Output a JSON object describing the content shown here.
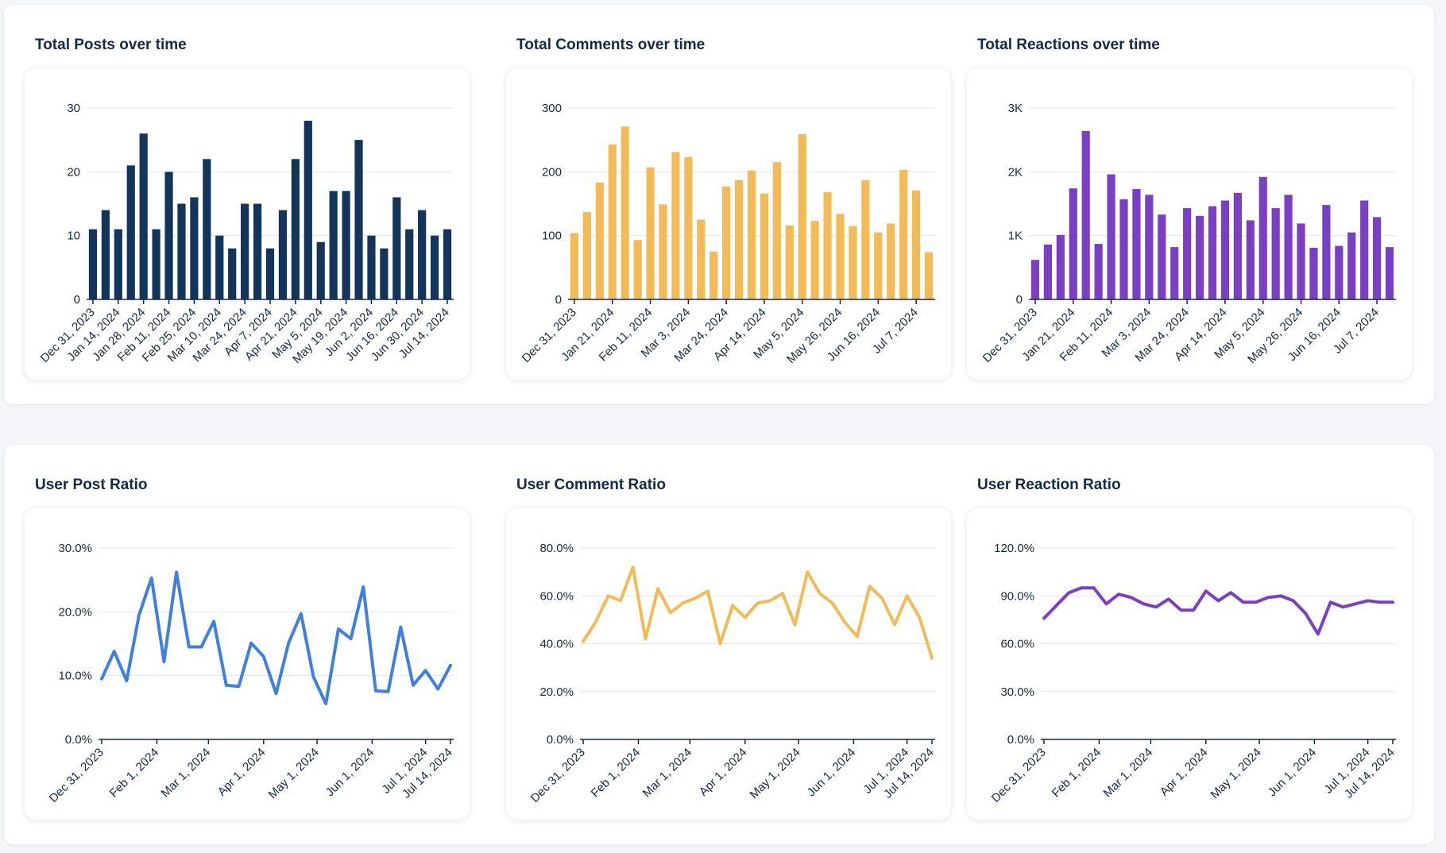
{
  "sections": [
    {
      "charts": [
        {
          "title": "Total Posts over time",
          "chart_data": {
            "type": "bar",
            "color": "#13345b",
            "ylim": [
              0,
              30
            ],
            "yticks": [
              "0",
              "10",
              "20",
              "30"
            ],
            "ytick_values": [
              0,
              10,
              20,
              30
            ],
            "values": [
              11,
              14,
              11,
              21,
              26,
              11,
              20,
              15,
              16,
              22,
              10,
              8,
              15,
              15,
              8,
              14,
              22,
              28,
              9,
              17,
              17,
              25,
              10,
              8,
              16,
              11,
              14,
              10,
              11
            ],
            "xtick_labels": [
              {
                "index": 0,
                "label": "Dec 31, 2023"
              },
              {
                "index": 2,
                "label": "Jan 14, 2024"
              },
              {
                "index": 4,
                "label": "Jan 28, 2024"
              },
              {
                "index": 6,
                "label": "Feb 11, 2024"
              },
              {
                "index": 8,
                "label": "Feb 25, 2024"
              },
              {
                "index": 10,
                "label": "Mar 10, 2024"
              },
              {
                "index": 12,
                "label": "Mar 24, 2024"
              },
              {
                "index": 14,
                "label": "Apr 7, 2024"
              },
              {
                "index": 16,
                "label": "Apr 21, 2024"
              },
              {
                "index": 18,
                "label": "May 5, 2024"
              },
              {
                "index": 20,
                "label": "May 19, 2024"
              },
              {
                "index": 22,
                "label": "Jun 2, 2024"
              },
              {
                "index": 24,
                "label": "Jun 16, 2024"
              },
              {
                "index": 26,
                "label": "Jun 30, 2024"
              },
              {
                "index": 28,
                "label": "Jul 14, 2024"
              }
            ]
          }
        },
        {
          "title": "Total Comments over time",
          "chart_data": {
            "type": "bar",
            "color": "#f2bb57",
            "ylim": [
              0,
              300
            ],
            "yticks": [
              "0",
              "100",
              "200",
              "300"
            ],
            "ytick_values": [
              0,
              100,
              200,
              300
            ],
            "values": [
              104,
              137,
              183,
              243,
              271,
              93,
              207,
              149,
              231,
              223,
              125,
              75,
              177,
              187,
              202,
              166,
              215,
              116,
              259,
              123,
              168,
              134,
              115,
              187,
              105,
              119,
              203,
              171,
              74
            ],
            "xtick_labels": [
              {
                "index": 0,
                "label": "Dec 31, 2023"
              },
              {
                "index": 3,
                "label": "Jan 21, 2024"
              },
              {
                "index": 6,
                "label": "Feb 11, 2024"
              },
              {
                "index": 9,
                "label": "Mar 3, 2024"
              },
              {
                "index": 12,
                "label": "Mar 24, 2024"
              },
              {
                "index": 15,
                "label": "Apr 14, 2024"
              },
              {
                "index": 18,
                "label": "May 5, 2024"
              },
              {
                "index": 21,
                "label": "May 26, 2024"
              },
              {
                "index": 24,
                "label": "Jun 16, 2024"
              },
              {
                "index": 27,
                "label": "Jul 7, 2024"
              }
            ]
          }
        },
        {
          "title": "Total Reactions over time",
          "chart_data": {
            "type": "bar",
            "color": "#7a3fc2",
            "ylim": [
              0,
              3000
            ],
            "yticks": [
              "0",
              "1K",
              "2K",
              "3K"
            ],
            "ytick_values": [
              0,
              1000,
              2000,
              3000
            ],
            "values": [
              620,
              860,
              1010,
              1740,
              2640,
              870,
              1960,
              1570,
              1730,
              1640,
              1330,
              820,
              1430,
              1310,
              1460,
              1550,
              1670,
              1240,
              1920,
              1430,
              1640,
              1190,
              810,
              1480,
              840,
              1050,
              1550,
              1290,
              820
            ],
            "xtick_labels": [
              {
                "index": 0,
                "label": "Dec 31, 2023"
              },
              {
                "index": 3,
                "label": "Jan 21, 2024"
              },
              {
                "index": 6,
                "label": "Feb 11, 2024"
              },
              {
                "index": 9,
                "label": "Mar 3, 2024"
              },
              {
                "index": 12,
                "label": "Mar 24, 2024"
              },
              {
                "index": 15,
                "label": "Apr 14, 2024"
              },
              {
                "index": 18,
                "label": "May 5, 2024"
              },
              {
                "index": 21,
                "label": "May 26, 2024"
              },
              {
                "index": 24,
                "label": "Jun 16, 2024"
              },
              {
                "index": 27,
                "label": "Jul 7, 2024"
              }
            ]
          }
        }
      ]
    },
    {
      "charts": [
        {
          "title": "User Post Ratio",
          "chart_data": {
            "type": "line",
            "color": "#3f7fde",
            "ylim": [
              0,
              30
            ],
            "yticks": [
              "0.0%",
              "10.0%",
              "20.0%",
              "30.0%"
            ],
            "ytick_values": [
              0,
              10,
              20,
              30
            ],
            "values": [
              9.5,
              13.8,
              9.2,
              19.5,
              25.3,
              12.2,
              26.2,
              14.5,
              14.5,
              18.5,
              8.5,
              8.3,
              15.1,
              13.0,
              7.2,
              15.1,
              19.7,
              9.8,
              5.6,
              17.3,
              15.8,
              23.9,
              7.6,
              7.5,
              17.6,
              8.5,
              10.8,
              7.9,
              11.6
            ],
            "xtick_labels": [
              {
                "index": 0,
                "label": "Dec 31, 2023"
              },
              {
                "index": 4.43,
                "label": "Feb 1, 2024"
              },
              {
                "index": 8.57,
                "label": "Mar 1, 2024"
              },
              {
                "index": 13,
                "label": "Apr 1, 2024"
              },
              {
                "index": 17.29,
                "label": "May 1, 2024"
              },
              {
                "index": 21.71,
                "label": "Jun 1, 2024"
              },
              {
                "index": 26,
                "label": "Jul 1, 2024"
              },
              {
                "index": 28,
                "label": "Jul 14, 2024"
              }
            ]
          }
        },
        {
          "title": "User Comment Ratio",
          "chart_data": {
            "type": "line",
            "color": "#f2bb57",
            "ylim": [
              0,
              80
            ],
            "yticks": [
              "0.0%",
              "20.0%",
              "40.0%",
              "60.0%",
              "80.0%"
            ],
            "ytick_values": [
              0,
              20,
              40,
              60,
              80
            ],
            "values": [
              41,
              49,
              60,
              58,
              72,
              42,
              63,
              53,
              57,
              59,
              62,
              40,
              56,
              51,
              57,
              58,
              61,
              48,
              70,
              61,
              57,
              49,
              43,
              64,
              59,
              48,
              60,
              51,
              34
            ],
            "xtick_labels": [
              {
                "index": 0,
                "label": "Dec 31, 2023"
              },
              {
                "index": 4.43,
                "label": "Feb 1, 2024"
              },
              {
                "index": 8.57,
                "label": "Mar 1, 2024"
              },
              {
                "index": 13,
                "label": "Apr 1, 2024"
              },
              {
                "index": 17.29,
                "label": "May 1, 2024"
              },
              {
                "index": 21.71,
                "label": "Jun 1, 2024"
              },
              {
                "index": 26,
                "label": "Jul 1, 2024"
              },
              {
                "index": 28,
                "label": "Jul 14, 2024"
              }
            ]
          }
        },
        {
          "title": "User Reaction Ratio",
          "chart_data": {
            "type": "line",
            "color": "#7a3fc2",
            "ylim": [
              0,
              120
            ],
            "yticks": [
              "0.0%",
              "30.0%",
              "60.0%",
              "90.0%",
              "120.0%"
            ],
            "ytick_values": [
              0,
              30,
              60,
              90,
              120
            ],
            "values": [
              76,
              84,
              92,
              95,
              95,
              85,
              91,
              89,
              85,
              83,
              88,
              81,
              81,
              93,
              87,
              92,
              86,
              86,
              89,
              90,
              87,
              79,
              66,
              86,
              83,
              85,
              87,
              86,
              86
            ],
            "xtick_labels": [
              {
                "index": 0,
                "label": "Dec 31, 2023"
              },
              {
                "index": 4.43,
                "label": "Feb 1, 2024"
              },
              {
                "index": 8.57,
                "label": "Mar 1, 2024"
              },
              {
                "index": 13,
                "label": "Apr 1, 2024"
              },
              {
                "index": 17.29,
                "label": "May 1, 2024"
              },
              {
                "index": 21.71,
                "label": "Jun 1, 2024"
              },
              {
                "index": 26,
                "label": "Jul 1, 2024"
              },
              {
                "index": 28,
                "label": "Jul 14, 2024"
              }
            ]
          }
        }
      ]
    }
  ]
}
